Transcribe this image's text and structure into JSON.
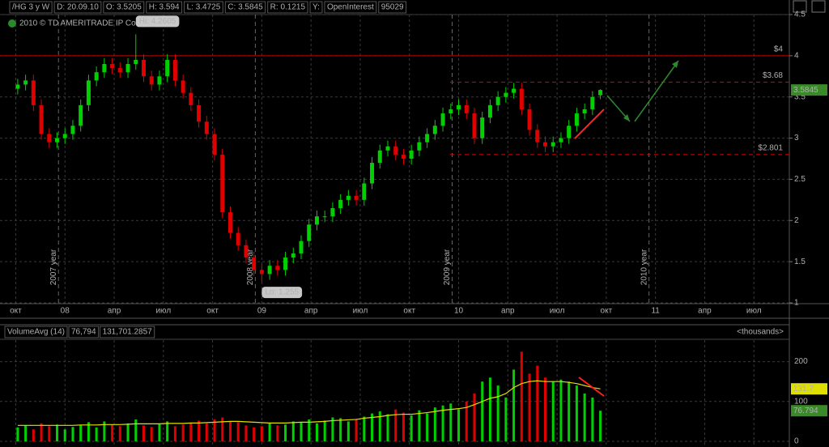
{
  "header": {
    "items": [
      "/HG 3 y W",
      "D: 20.09.10",
      "O: 3.5205",
      "H: 3.594",
      "L: 3.4725",
      "C: 3.5845",
      "R: 0.1215",
      "Y:",
      "OpenInterest",
      "95029"
    ],
    "copyright": "2010 © TD AMERITRADE IP Company, Inc."
  },
  "chart_data": [
    {
      "type": "candlestick",
      "x": [
        2007.76,
        2007.8,
        2007.84,
        2007.88,
        2007.92,
        2007.96,
        2008.0,
        2008.04,
        2008.08,
        2008.12,
        2008.16,
        2008.2,
        2008.24,
        2008.28,
        2008.32,
        2008.36,
        2008.4,
        2008.44,
        2008.48,
        2008.52,
        2008.56,
        2008.6,
        2008.64,
        2008.68,
        2008.72,
        2008.76,
        2008.8,
        2008.84,
        2008.88,
        2008.92,
        2008.96,
        2009.0,
        2009.04,
        2009.08,
        2009.12,
        2009.16,
        2009.2,
        2009.24,
        2009.28,
        2009.32,
        2009.36,
        2009.4,
        2009.44,
        2009.48,
        2009.52,
        2009.56,
        2009.6,
        2009.64,
        2009.68,
        2009.72,
        2009.76,
        2009.8,
        2009.84,
        2009.88,
        2009.92,
        2009.96,
        2010.0,
        2010.04,
        2010.08,
        2010.12,
        2010.16,
        2010.2,
        2010.24,
        2010.28,
        2010.32,
        2010.36,
        2010.4,
        2010.44,
        2010.48,
        2010.52,
        2010.56,
        2010.6,
        2010.64,
        2010.68,
        2010.72
      ],
      "open": [
        3.6,
        3.65,
        3.7,
        3.4,
        3.05,
        2.95,
        3.0,
        3.05,
        3.15,
        3.4,
        3.7,
        3.8,
        3.9,
        3.85,
        3.8,
        3.9,
        3.95,
        3.75,
        3.65,
        3.75,
        3.95,
        3.7,
        3.55,
        3.4,
        3.2,
        3.05,
        2.8,
        2.1,
        1.85,
        1.7,
        1.55,
        1.4,
        1.35,
        1.45,
        1.4,
        1.55,
        1.6,
        1.75,
        1.95,
        2.05,
        2.05,
        2.15,
        2.25,
        2.3,
        2.25,
        2.45,
        2.7,
        2.85,
        2.9,
        2.8,
        2.75,
        2.85,
        2.95,
        3.05,
        3.15,
        3.3,
        3.35,
        3.4,
        3.3,
        3.0,
        3.25,
        3.4,
        3.5,
        3.55,
        3.6,
        3.35,
        3.1,
        2.95,
        2.9,
        2.95,
        3.0,
        3.15,
        3.3,
        3.35,
        3.5205
      ],
      "high": [
        3.72,
        3.77,
        3.77,
        3.47,
        3.12,
        3.07,
        3.12,
        3.22,
        3.47,
        3.77,
        3.87,
        3.97,
        3.97,
        3.92,
        3.97,
        4.2605,
        4.02,
        3.82,
        3.82,
        4.02,
        4.02,
        3.77,
        3.62,
        3.47,
        3.27,
        3.12,
        2.87,
        2.17,
        1.92,
        1.77,
        1.62,
        1.47,
        1.52,
        1.52,
        1.62,
        1.67,
        1.82,
        2.02,
        2.12,
        2.12,
        2.22,
        2.32,
        2.37,
        2.37,
        2.52,
        2.77,
        2.92,
        2.97,
        2.97,
        2.87,
        2.92,
        3.02,
        3.12,
        3.22,
        3.37,
        3.42,
        3.47,
        3.47,
        3.37,
        3.32,
        3.47,
        3.57,
        3.62,
        3.67,
        3.67,
        3.42,
        3.17,
        3.02,
        3.02,
        3.07,
        3.22,
        3.37,
        3.42,
        3.57,
        3.594
      ],
      "low": [
        3.53,
        3.58,
        3.33,
        2.98,
        2.88,
        2.88,
        2.93,
        2.98,
        3.08,
        3.33,
        3.63,
        3.73,
        3.78,
        3.73,
        3.73,
        3.83,
        3.68,
        3.58,
        3.58,
        3.68,
        3.63,
        3.48,
        3.33,
        3.13,
        2.98,
        2.73,
        2.03,
        1.78,
        1.63,
        1.48,
        1.33,
        1.255,
        1.28,
        1.33,
        1.33,
        1.48,
        1.53,
        1.68,
        1.88,
        1.98,
        1.98,
        2.08,
        2.18,
        2.18,
        2.18,
        2.38,
        2.63,
        2.78,
        2.73,
        2.68,
        2.68,
        2.78,
        2.88,
        2.98,
        3.08,
        3.23,
        3.28,
        3.23,
        2.93,
        2.93,
        3.18,
        3.33,
        3.43,
        3.48,
        3.28,
        3.03,
        2.88,
        2.83,
        2.83,
        2.88,
        2.93,
        3.08,
        3.23,
        3.28,
        3.4725
      ],
      "close": [
        3.65,
        3.7,
        3.4,
        3.05,
        2.95,
        3.0,
        3.05,
        3.15,
        3.4,
        3.7,
        3.8,
        3.9,
        3.85,
        3.8,
        3.9,
        3.95,
        3.75,
        3.65,
        3.75,
        3.95,
        3.7,
        3.55,
        3.4,
        3.2,
        3.05,
        2.8,
        2.1,
        1.85,
        1.7,
        1.55,
        1.4,
        1.35,
        1.45,
        1.4,
        1.55,
        1.6,
        1.75,
        1.95,
        2.05,
        2.05,
        2.15,
        2.25,
        2.3,
        2.25,
        2.45,
        2.7,
        2.85,
        2.9,
        2.8,
        2.75,
        2.85,
        2.95,
        3.05,
        3.15,
        3.3,
        3.35,
        3.4,
        3.3,
        3.0,
        3.25,
        3.4,
        3.5,
        3.55,
        3.6,
        3.35,
        3.1,
        2.95,
        2.9,
        2.95,
        3.0,
        3.15,
        3.3,
        3.35,
        3.5,
        3.5845
      ],
      "up_color": "#00d000",
      "down_color": "#e00000",
      "xlim": [
        2007.67,
        2011.68
      ],
      "xticks": [
        {
          "value": 2007.75,
          "label": "окт"
        },
        {
          "value": 2008.0,
          "label": "08"
        },
        {
          "value": 2008.25,
          "label": "апр"
        },
        {
          "value": 2008.5,
          "label": "июл"
        },
        {
          "value": 2008.75,
          "label": "окт"
        },
        {
          "value": 2009.0,
          "label": "09"
        },
        {
          "value": 2009.25,
          "label": "апр"
        },
        {
          "value": 2009.5,
          "label": "июл"
        },
        {
          "value": 2009.75,
          "label": "окт"
        },
        {
          "value": 2010.0,
          "label": "10"
        },
        {
          "value": 2010.25,
          "label": "апр"
        },
        {
          "value": 2010.5,
          "label": "июл"
        },
        {
          "value": 2010.75,
          "label": "окт"
        },
        {
          "value": 2011.0,
          "label": "11"
        },
        {
          "value": 2011.25,
          "label": "апр"
        },
        {
          "value": 2011.5,
          "label": "июл"
        }
      ],
      "ylim": [
        1,
        4.5
      ],
      "yticks": [
        1,
        1.5,
        2,
        2.5,
        3,
        3.5,
        4,
        4.5
      ],
      "grid": true,
      "year_markers": [
        {
          "value": 2008.0,
          "label": "2007 year"
        },
        {
          "value": 2009.0,
          "label": "2008 year"
        },
        {
          "value": 2010.0,
          "label": "2009 year"
        },
        {
          "value": 2011.0,
          "label": "2010 year"
        }
      ],
      "levels": [
        {
          "value": 4,
          "label": "$4",
          "style": "solid",
          "color": "#c00000"
        },
        {
          "value": 3.68,
          "label": "$3.68",
          "style": "dashed",
          "color": "#e00000"
        },
        {
          "value": 2.801,
          "label": "$2.801",
          "style": "dashed",
          "color": "#e00000"
        }
      ],
      "last_tag": {
        "value": 3.5845,
        "label": "3.5845",
        "color": "#3a8a2a"
      },
      "high_tag": {
        "value": 4.2605,
        "label": "Hi: 4.2605"
      },
      "low_tag": {
        "value": 1.255,
        "label": "Lo: 1.255"
      }
    },
    {
      "type": "bar",
      "title": "VolumeAvg (14)",
      "readouts": [
        "76,794",
        "131,701.2857"
      ],
      "unit_label": "<thousands>",
      "values": [
        35,
        40,
        30,
        45,
        38,
        42,
        30,
        36,
        40,
        48,
        35,
        50,
        42,
        38,
        45,
        55,
        40,
        36,
        44,
        50,
        38,
        42,
        47,
        52,
        45,
        55,
        60,
        50,
        48,
        40,
        35,
        38,
        45,
        40,
        42,
        50,
        48,
        55,
        45,
        52,
        60,
        58,
        50,
        55,
        62,
        70,
        75,
        68,
        80,
        72,
        65,
        78,
        70,
        85,
        90,
        95,
        80,
        100,
        120,
        150,
        160,
        140,
        110,
        180,
        225,
        170,
        190,
        160,
        150,
        155,
        150,
        140,
        120,
        110,
        76.794
      ],
      "average": {
        "color": "#e0e000",
        "values": [
          40,
          40,
          40,
          40,
          40,
          40,
          40,
          40,
          41,
          41,
          41,
          42,
          42,
          42,
          43,
          44,
          44,
          44,
          44,
          45,
          45,
          45,
          46,
          46,
          47,
          48,
          49,
          50,
          50,
          49,
          48,
          47,
          46,
          46,
          46,
          47,
          48,
          48,
          49,
          50,
          52,
          53,
          54,
          55,
          58,
          60,
          62,
          65,
          67,
          68,
          68,
          70,
          72,
          75,
          78,
          80,
          82,
          85,
          92,
          100,
          108,
          112,
          120,
          135,
          145,
          150,
          152,
          150,
          150,
          150,
          148,
          145,
          140,
          135,
          131.7
        ]
      },
      "ylim": [
        0,
        250
      ],
      "yticks": [
        0,
        100,
        200
      ],
      "tags": [
        {
          "value": 131.7,
          "label": "131.7",
          "color": "#e0e000"
        },
        {
          "value": 76.794,
          "label": "76.794",
          "color": "#3a8a2a"
        }
      ]
    }
  ]
}
